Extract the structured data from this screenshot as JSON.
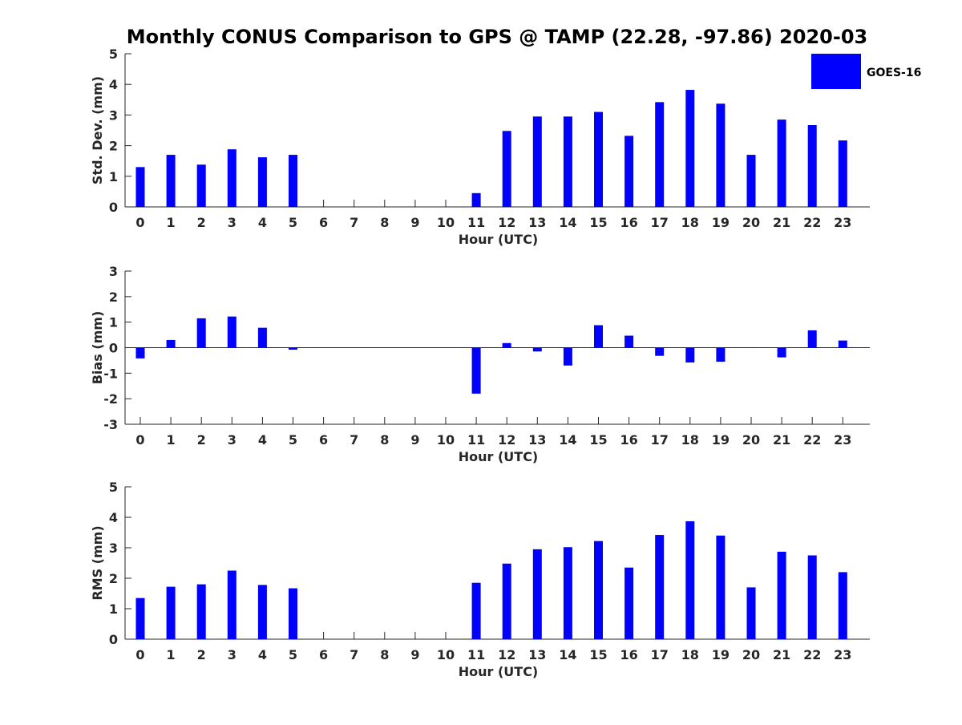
{
  "title": "Monthly CONUS Comparison to GPS @ TAMP (22.28, -97.86) 2020-03",
  "legend": {
    "label": "GOES-16",
    "color": "#0000ff",
    "placement": "top-right"
  },
  "bar_color": "#0000ff",
  "chart_data": [
    {
      "type": "bar",
      "xlabel": "Hour (UTC)",
      "ylabel": "Std. Dev. (mm)",
      "categories": [
        "0",
        "1",
        "2",
        "3",
        "4",
        "5",
        "6",
        "7",
        "8",
        "9",
        "10",
        "11",
        "12",
        "13",
        "14",
        "15",
        "16",
        "17",
        "18",
        "19",
        "20",
        "21",
        "22",
        "23"
      ],
      "ylim": [
        0,
        5
      ],
      "yticks": [
        "0",
        "1",
        "2",
        "3",
        "4",
        "5"
      ],
      "series": [
        {
          "name": "GOES-16",
          "values": [
            1.3,
            1.7,
            1.38,
            1.88,
            1.62,
            1.7,
            null,
            null,
            null,
            null,
            null,
            0.45,
            2.48,
            2.95,
            2.95,
            3.1,
            2.32,
            3.42,
            3.82,
            3.37,
            1.7,
            2.85,
            2.67,
            2.17
          ]
        }
      ]
    },
    {
      "type": "bar",
      "xlabel": "Hour (UTC)",
      "ylabel": "Bias (mm)",
      "categories": [
        "0",
        "1",
        "2",
        "3",
        "4",
        "5",
        "6",
        "7",
        "8",
        "9",
        "10",
        "11",
        "12",
        "13",
        "14",
        "15",
        "16",
        "17",
        "18",
        "19",
        "20",
        "21",
        "22",
        "23"
      ],
      "ylim": [
        -3,
        3
      ],
      "yticks": [
        "-3",
        "-2",
        "-1",
        "0",
        "1",
        "2",
        "3"
      ],
      "series": [
        {
          "name": "GOES-16",
          "values": [
            -0.42,
            0.3,
            1.15,
            1.22,
            0.78,
            -0.08,
            null,
            null,
            null,
            null,
            null,
            -1.8,
            0.18,
            -0.15,
            -0.7,
            0.88,
            0.47,
            -0.32,
            -0.58,
            -0.55,
            0,
            -0.38,
            0.68,
            0.28
          ]
        }
      ]
    },
    {
      "type": "bar",
      "xlabel": "Hour (UTC)",
      "ylabel": "RMS (mm)",
      "categories": [
        "0",
        "1",
        "2",
        "3",
        "4",
        "5",
        "6",
        "7",
        "8",
        "9",
        "10",
        "11",
        "12",
        "13",
        "14",
        "15",
        "16",
        "17",
        "18",
        "19",
        "20",
        "21",
        "22",
        "23"
      ],
      "ylim": [
        0,
        5
      ],
      "yticks": [
        "0",
        "1",
        "2",
        "3",
        "4",
        "5"
      ],
      "series": [
        {
          "name": "GOES-16",
          "values": [
            1.35,
            1.72,
            1.8,
            2.25,
            1.78,
            1.67,
            null,
            null,
            null,
            null,
            null,
            1.85,
            2.48,
            2.95,
            3.02,
            3.22,
            2.35,
            3.42,
            3.87,
            3.4,
            1.7,
            2.87,
            2.75,
            2.2
          ]
        }
      ]
    }
  ]
}
